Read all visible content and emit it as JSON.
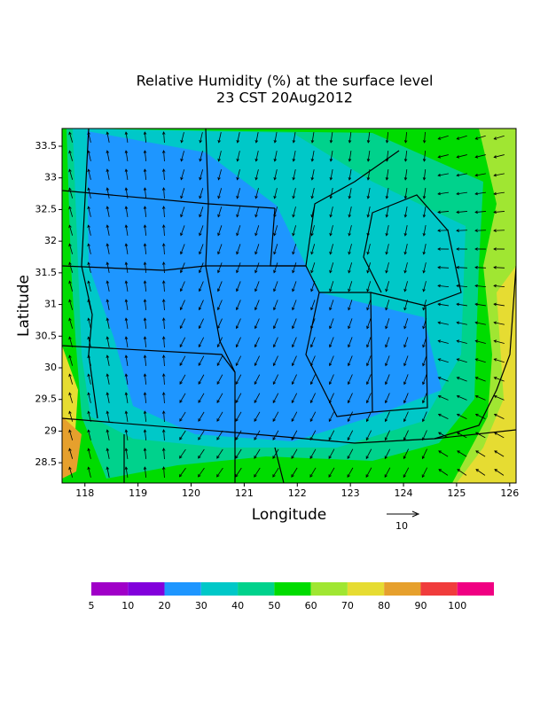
{
  "chart_data": {
    "type": "contour-map",
    "title": "Relative Humidity (%) at the surface level",
    "subtitle": "23 CST 20Aug2012",
    "xlabel": "Longitude",
    "ylabel": "Latitude",
    "xlim": [
      117.57,
      126.12
    ],
    "ylim": [
      28.18,
      33.78
    ],
    "xticks": [
      118,
      119,
      120,
      121,
      122,
      123,
      124,
      125,
      126
    ],
    "yticks": [
      28.5,
      29,
      29.5,
      30,
      30.5,
      31,
      31.5,
      32,
      32.5,
      33,
      33.5
    ],
    "vector_reference": 10,
    "colorbar": {
      "levels": [
        5,
        10,
        20,
        30,
        40,
        50,
        60,
        70,
        80,
        90,
        100
      ],
      "colors": [
        "#a000c8",
        "#8200dc",
        "#1e96ff",
        "#00c8c8",
        "#00d28c",
        "#00dc00",
        "#a0e632",
        "#e6dc32",
        "#e6a02d",
        "#f03c3c",
        "#f00082"
      ]
    }
  }
}
